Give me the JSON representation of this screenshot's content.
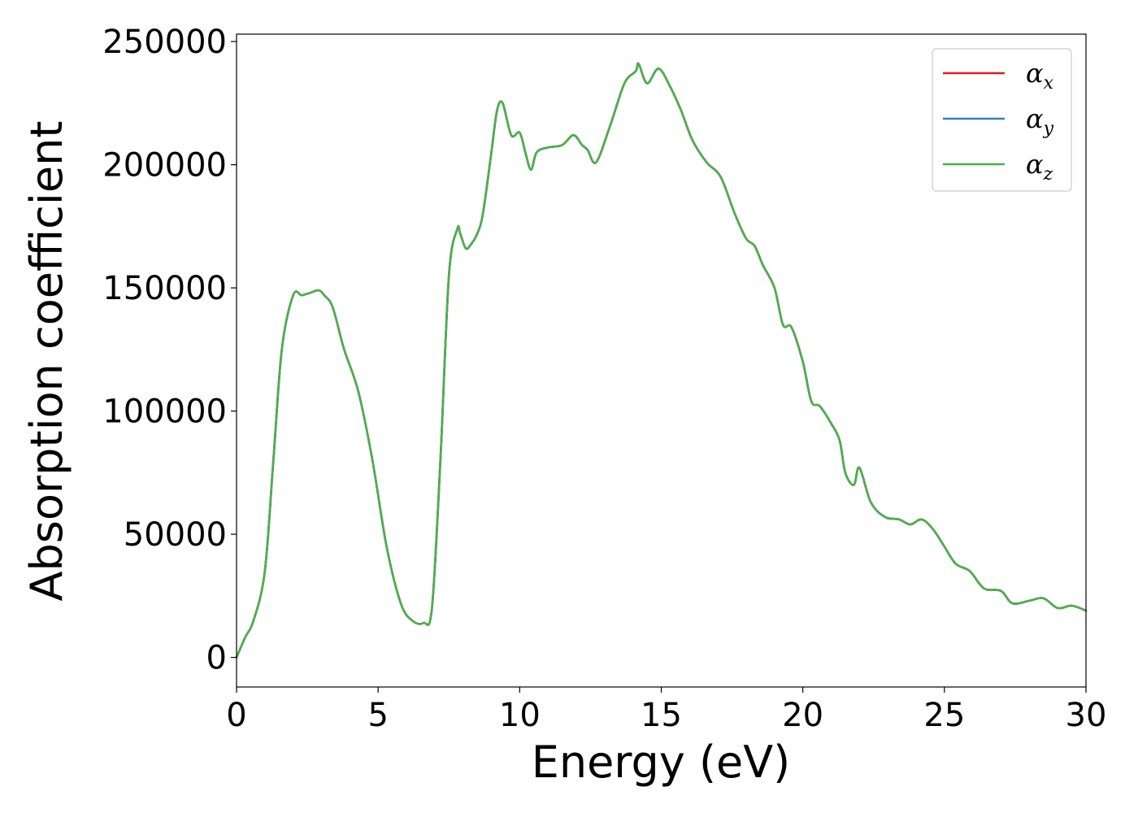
{
  "chart_data": {
    "type": "line",
    "xlabel": "Energy (eV)",
    "ylabel": "Absorption coefficient",
    "xlim": [
      0,
      30
    ],
    "ylim": [
      -12000,
      253000
    ],
    "x_ticks": [
      0,
      5,
      10,
      15,
      20,
      25,
      30
    ],
    "x_tick_labels": [
      "0",
      "5",
      "10",
      "15",
      "20",
      "25",
      "30"
    ],
    "y_ticks": [
      0,
      50000,
      100000,
      150000,
      200000,
      250000
    ],
    "y_tick_labels": [
      "0",
      "50000",
      "100000",
      "150000",
      "200000",
      "250000"
    ],
    "grid": false,
    "legend_position": "top-right",
    "series": [
      {
        "name": "αx",
        "base": "α",
        "sub": "x",
        "color": "#e41a1c",
        "x": [
          0,
          0.3,
          0.6,
          1.0,
          1.3,
          1.6,
          2.0,
          2.3,
          2.6,
          2.9,
          3.1,
          3.4,
          3.8,
          4.3,
          4.8,
          5.3,
          5.8,
          6.2,
          6.6,
          6.9,
          7.2,
          7.5,
          7.8,
          7.9,
          8.1,
          8.3,
          8.5,
          8.7,
          9.0,
          9.2,
          9.4,
          9.7,
          10.0,
          10.2,
          10.4,
          10.6,
          11.0,
          11.5,
          11.9,
          12.2,
          12.4,
          12.7,
          13.2,
          13.7,
          14.1,
          14.2,
          14.5,
          14.9,
          15.3,
          15.7,
          16.1,
          16.6,
          17.1,
          17.6,
          18.0,
          18.3,
          18.6,
          19.0,
          19.3,
          19.6,
          20.0,
          20.3,
          20.6,
          21.0,
          21.3,
          21.5,
          21.8,
          22.0,
          22.4,
          22.9,
          23.4,
          23.8,
          24.2,
          24.6,
          25.0,
          25.4,
          25.9,
          26.4,
          27.0,
          27.4,
          28.0,
          28.5,
          29.0,
          29.5,
          30.0
        ],
        "y": [
          0,
          8000,
          15000,
          35000,
          80000,
          125000,
          147000,
          147000,
          148000,
          149000,
          147000,
          142000,
          125000,
          108000,
          80000,
          45000,
          22000,
          15000,
          14000,
          20000,
          80000,
          155000,
          174000,
          172000,
          166000,
          168000,
          172000,
          180000,
          205000,
          222000,
          225000,
          212000,
          213000,
          205000,
          198000,
          205000,
          207000,
          208000,
          212000,
          208000,
          206000,
          201000,
          216000,
          233000,
          238000,
          241000,
          233000,
          239000,
          232000,
          222000,
          210000,
          201000,
          195000,
          180000,
          170000,
          167000,
          159000,
          150000,
          135000,
          134000,
          120000,
          104000,
          102000,
          95000,
          88000,
          75000,
          70000,
          77000,
          63000,
          57000,
          56000,
          54000,
          56000,
          52000,
          45000,
          38000,
          35000,
          28000,
          27000,
          22000,
          23000,
          24000,
          20000,
          21000,
          19000
        ]
      },
      {
        "name": "αy",
        "base": "α",
        "sub": "y",
        "color": "#377eb8",
        "x": [
          0,
          0.3,
          0.6,
          1.0,
          1.3,
          1.6,
          2.0,
          2.3,
          2.6,
          2.9,
          3.1,
          3.4,
          3.8,
          4.3,
          4.8,
          5.3,
          5.8,
          6.2,
          6.6,
          6.9,
          7.2,
          7.5,
          7.8,
          7.9,
          8.1,
          8.3,
          8.5,
          8.7,
          9.0,
          9.2,
          9.4,
          9.7,
          10.0,
          10.2,
          10.4,
          10.6,
          11.0,
          11.5,
          11.9,
          12.2,
          12.4,
          12.7,
          13.2,
          13.7,
          14.1,
          14.2,
          14.5,
          14.9,
          15.3,
          15.7,
          16.1,
          16.6,
          17.1,
          17.6,
          18.0,
          18.3,
          18.6,
          19.0,
          19.3,
          19.6,
          20.0,
          20.3,
          20.6,
          21.0,
          21.3,
          21.5,
          21.8,
          22.0,
          22.4,
          22.9,
          23.4,
          23.8,
          24.2,
          24.6,
          25.0,
          25.4,
          25.9,
          26.4,
          27.0,
          27.4,
          28.0,
          28.5,
          29.0,
          29.5,
          30.0
        ],
        "y": [
          0,
          8000,
          15000,
          35000,
          80000,
          125000,
          147000,
          147000,
          148000,
          149000,
          147000,
          142000,
          125000,
          108000,
          80000,
          45000,
          22000,
          15000,
          14000,
          20000,
          80000,
          155000,
          174000,
          172000,
          166000,
          168000,
          172000,
          180000,
          205000,
          222000,
          225000,
          212000,
          213000,
          205000,
          198000,
          205000,
          207000,
          208000,
          212000,
          208000,
          206000,
          201000,
          216000,
          233000,
          238000,
          241000,
          233000,
          239000,
          232000,
          222000,
          210000,
          201000,
          195000,
          180000,
          170000,
          167000,
          159000,
          150000,
          135000,
          134000,
          120000,
          104000,
          102000,
          95000,
          88000,
          75000,
          70000,
          77000,
          63000,
          57000,
          56000,
          54000,
          56000,
          52000,
          45000,
          38000,
          35000,
          28000,
          27000,
          22000,
          23000,
          24000,
          20000,
          21000,
          19000
        ]
      },
      {
        "name": "αz",
        "base": "α",
        "sub": "z",
        "color": "#4daf4a",
        "x": [
          0,
          0.3,
          0.6,
          1.0,
          1.3,
          1.6,
          2.0,
          2.3,
          2.6,
          2.9,
          3.1,
          3.4,
          3.8,
          4.3,
          4.8,
          5.3,
          5.8,
          6.2,
          6.6,
          6.9,
          7.2,
          7.5,
          7.8,
          7.9,
          8.1,
          8.3,
          8.5,
          8.7,
          9.0,
          9.2,
          9.4,
          9.7,
          10.0,
          10.2,
          10.4,
          10.6,
          11.0,
          11.5,
          11.9,
          12.2,
          12.4,
          12.7,
          13.2,
          13.7,
          14.1,
          14.2,
          14.5,
          14.9,
          15.3,
          15.7,
          16.1,
          16.6,
          17.1,
          17.6,
          18.0,
          18.3,
          18.6,
          19.0,
          19.3,
          19.6,
          20.0,
          20.3,
          20.6,
          21.0,
          21.3,
          21.5,
          21.8,
          22.0,
          22.4,
          22.9,
          23.4,
          23.8,
          24.2,
          24.6,
          25.0,
          25.4,
          25.9,
          26.4,
          27.0,
          27.4,
          28.0,
          28.5,
          29.0,
          29.5,
          30.0
        ],
        "y": [
          0,
          8000,
          15000,
          35000,
          80000,
          125000,
          147000,
          147000,
          148000,
          149000,
          147000,
          142000,
          125000,
          108000,
          80000,
          45000,
          22000,
          15000,
          14000,
          20000,
          80000,
          155000,
          174000,
          172000,
          166000,
          168000,
          172000,
          180000,
          205000,
          222000,
          225000,
          212000,
          213000,
          205000,
          198000,
          205000,
          207000,
          208000,
          212000,
          208000,
          206000,
          201000,
          216000,
          233000,
          238000,
          241000,
          233000,
          239000,
          232000,
          222000,
          210000,
          201000,
          195000,
          180000,
          170000,
          167000,
          159000,
          150000,
          135000,
          134000,
          120000,
          104000,
          102000,
          95000,
          88000,
          75000,
          70000,
          77000,
          63000,
          57000,
          56000,
          54000,
          56000,
          52000,
          45000,
          38000,
          35000,
          28000,
          27000,
          22000,
          23000,
          24000,
          20000,
          21000,
          19000
        ]
      }
    ]
  }
}
